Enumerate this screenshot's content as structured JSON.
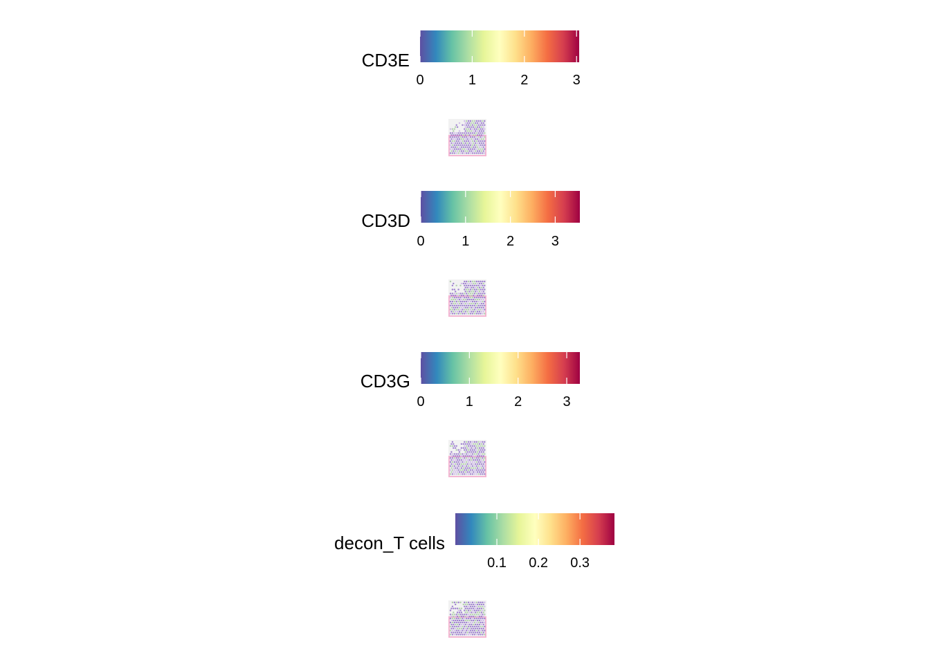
{
  "colors": {
    "palette": [
      "#5E4FA2",
      "#3288BD",
      "#66C2A5",
      "#ABDDA4",
      "#E6F598",
      "#FFFFBF",
      "#FEE08B",
      "#FDAE61",
      "#F46D43",
      "#D53E4F",
      "#9E0142"
    ],
    "tissue_background": "#F2F2F2",
    "tissue_outline": "#F4B6D2",
    "spot_color": "#8E6CC8",
    "spot_secondary": "#A6C9A0"
  },
  "chart_data": [
    {
      "type": "heatmap",
      "title": "CD3E",
      "scale": "Spectral",
      "limits": [
        0,
        3.05
      ],
      "ticks": [
        0,
        1,
        2,
        3
      ],
      "tick_labels": [
        "0",
        "1",
        "2",
        "3"
      ]
    },
    {
      "type": "heatmap",
      "title": "CD3D",
      "scale": "Spectral",
      "limits": [
        0,
        3.55
      ],
      "ticks": [
        0,
        1,
        2,
        3
      ],
      "tick_labels": [
        "0",
        "1",
        "2",
        "3"
      ]
    },
    {
      "type": "heatmap",
      "title": "CD3G",
      "scale": "Spectral",
      "limits": [
        0,
        3.27
      ],
      "ticks": [
        0,
        1,
        2,
        3
      ],
      "tick_labels": [
        "0",
        "1",
        "2",
        "3"
      ]
    },
    {
      "type": "heatmap",
      "title": "decon_T cells",
      "scale": "Spectral",
      "limits": [
        0.0,
        0.383
      ],
      "ticks": [
        0.1,
        0.2,
        0.3
      ],
      "tick_labels": [
        "0.1",
        "0.2",
        "0.3"
      ]
    }
  ]
}
